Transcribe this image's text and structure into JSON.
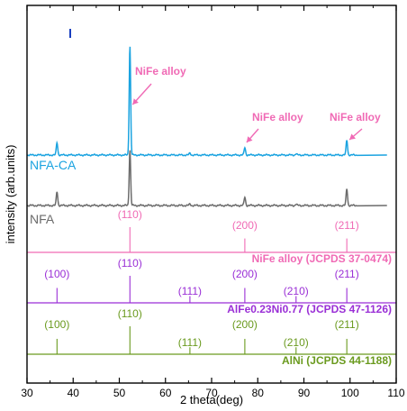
{
  "chart_data": {
    "type": "line",
    "xlabel": "2 theta(deg)",
    "ylabel": "intensity (arb.units)",
    "xlim": [
      30,
      110
    ],
    "x_ticks": [
      "30",
      "40",
      "50",
      "60",
      "70",
      "80",
      "90",
      "100",
      "110"
    ],
    "grid": false,
    "series": [
      {
        "name": "NFA-CA",
        "color": "#1aa3e0",
        "baseline": 1.0,
        "peaks": [
          {
            "x": 36.5,
            "h": 0.1
          },
          {
            "x": 52.3,
            "h": 0.88
          },
          {
            "x": 65.3,
            "h": 0.015
          },
          {
            "x": 77.2,
            "h": 0.06
          },
          {
            "x": 88.3,
            "h": 0.01
          },
          {
            "x": 99.3,
            "h": 0.12
          }
        ],
        "annotations": [
          {
            "text": "NiFe alloy",
            "x": 52.3
          },
          {
            "text": "NiFe alloy",
            "x": 77.2
          },
          {
            "text": "NiFe alloy",
            "x": 99.3
          }
        ]
      },
      {
        "name": "NFA",
        "color": "#6b6b6b",
        "baseline": 0.72,
        "peaks": [
          {
            "x": 36.5,
            "h": 0.1
          },
          {
            "x": 52.3,
            "h": 0.4
          },
          {
            "x": 65.3,
            "h": 0.01
          },
          {
            "x": 77.2,
            "h": 0.06
          },
          {
            "x": 88.3,
            "h": 0.01
          },
          {
            "x": 99.3,
            "h": 0.12
          }
        ]
      }
    ],
    "references": [
      {
        "name": "NiFe alloy (JCPDS 37-0474)",
        "color": "#f06ab5",
        "lines": [
          {
            "x": 52.3,
            "label": "(110)"
          },
          {
            "x": 77.2,
            "label": "(200)"
          },
          {
            "x": 99.3,
            "label": "(211)"
          }
        ]
      },
      {
        "name": "AlFe0.23Ni0.77 (JCPDS 47-1126)",
        "color": "#9a2fd6",
        "lines": [
          {
            "x": 36.5,
            "label": "(100)"
          },
          {
            "x": 52.3,
            "label": "(110)"
          },
          {
            "x": 65.3,
            "label": "(111)"
          },
          {
            "x": 77.2,
            "label": "(200)"
          },
          {
            "x": 88.3,
            "label": "(210)"
          },
          {
            "x": 99.3,
            "label": "(211)"
          }
        ]
      },
      {
        "name": "AlNi (JCPDS 44-1188)",
        "color": "#6a9a1e",
        "lines": [
          {
            "x": 36.5,
            "label": "(100)"
          },
          {
            "x": 52.3,
            "label": "(110)"
          },
          {
            "x": 65.3,
            "label": "(111)"
          },
          {
            "x": 77.2,
            "label": "(200)"
          },
          {
            "x": 88.3,
            "label": "(210)"
          },
          {
            "x": 99.3,
            "label": "(211)"
          }
        ]
      }
    ]
  }
}
